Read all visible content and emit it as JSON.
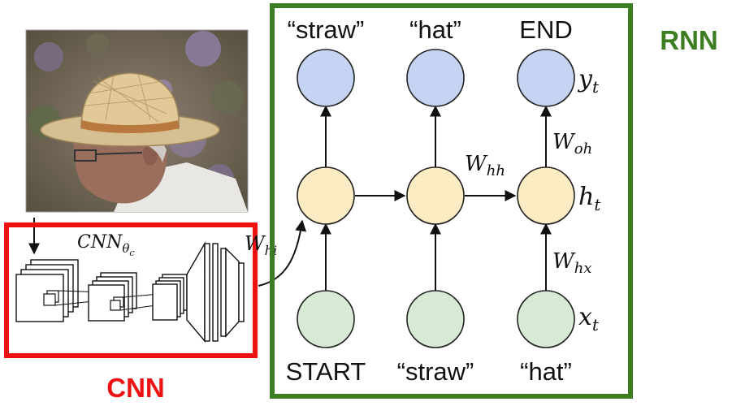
{
  "labels": {
    "rnn": "RNN",
    "cnn": "CNN",
    "cnn_function": "CNN",
    "cnn_subscript": "θ",
    "cnn_subsubscript": "c"
  },
  "outputs": [
    "“straw”",
    "“hat”",
    "END"
  ],
  "inputs": [
    "START",
    "“straw”",
    "“hat”"
  ],
  "notation": {
    "y_base": "y",
    "y_sub": "t",
    "h_base": "h",
    "h_sub": "t",
    "x_base": "x",
    "x_sub": "t",
    "whh_base": "W",
    "whh_sub": "hh",
    "woh_base": "W",
    "woh_sub": "oh",
    "whx_base": "W",
    "whx_sub": "hx",
    "whi_base": "W",
    "whi_sub": "hi"
  },
  "image": {
    "subject": "man wearing a straw hat"
  },
  "colors": {
    "rnn_border": "#3d7d22",
    "cnn_border": "#ee1111",
    "output_node": "#c4d4f2",
    "hidden_node": "#fcecc4",
    "input_node": "#d6ead4",
    "node_stroke": "#222222"
  }
}
